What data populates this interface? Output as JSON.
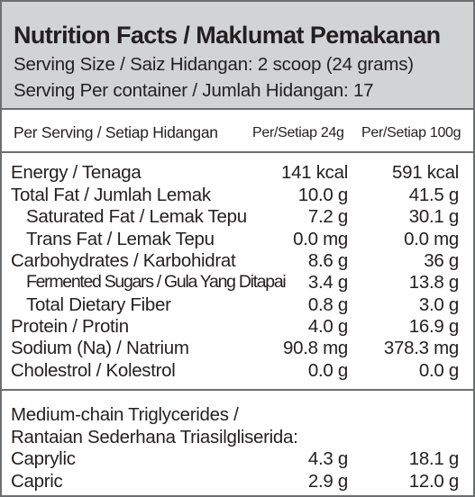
{
  "header": {
    "title": "Nutrition Facts / Maklumat Pemakanan",
    "serving_size": "Serving Size / Saiz Hidangan: 2 scoop (24 grams)",
    "servings_per_container": "Serving Per container / Jumlah Hidangan: 17"
  },
  "columns": {
    "label": "Per Serving / Setiap Hidangan",
    "per_24g": "Per/Setiap 24g",
    "per_100g": "Per/Setiap 100g"
  },
  "nutrients": [
    {
      "label": "Energy / Tenaga",
      "per_24g": "141 kcal",
      "per_100g": "591 kcal"
    },
    {
      "label": "Total Fat / Jumlah Lemak",
      "per_24g": "10.0 g",
      "per_100g": "41.5 g"
    },
    {
      "label": "Saturated Fat / Lemak Tepu",
      "per_24g": "7.2 g",
      "per_100g": "30.1 g"
    },
    {
      "label": "Trans Fat / Lemak Tepu",
      "per_24g": "0.0 mg",
      "per_100g": "0.0 mg"
    },
    {
      "label": "Carbohydrates / Karbohidrat",
      "per_24g": "8.6 g",
      "per_100g": "36 g"
    },
    {
      "label": "Fermented Sugars / Gula Yang Ditapai",
      "per_24g": "3.4 g",
      "per_100g": "13.8 g"
    },
    {
      "label": "Total Dietary Fiber",
      "per_24g": "0.8 g",
      "per_100g": "3.0 g"
    },
    {
      "label": "Protein / Protin",
      "per_24g": "4.0 g",
      "per_100g": "16.9 g"
    },
    {
      "label": "Sodium (Na) / Natrium",
      "per_24g": "90.8 mg",
      "per_100g": "378.3 mg"
    },
    {
      "label": "Cholestrol / Kolestrol",
      "per_24g": "0.0 g",
      "per_100g": "0.0 g"
    }
  ],
  "mct": {
    "heading_line1": "Medium-chain Triglycerides /",
    "heading_line2": "Rantaian Sederhana Triasilgliserida:",
    "items": [
      {
        "label": "Caprylic",
        "per_24g": "4.3 g",
        "per_100g": "18.1 g"
      },
      {
        "label": "Capric",
        "per_24g": "2.9 g",
        "per_100g": "12.0 g"
      }
    ]
  },
  "colors": {
    "header_bg": "#d1d3d4",
    "border": "#6d6e71",
    "text": "#231f20"
  }
}
